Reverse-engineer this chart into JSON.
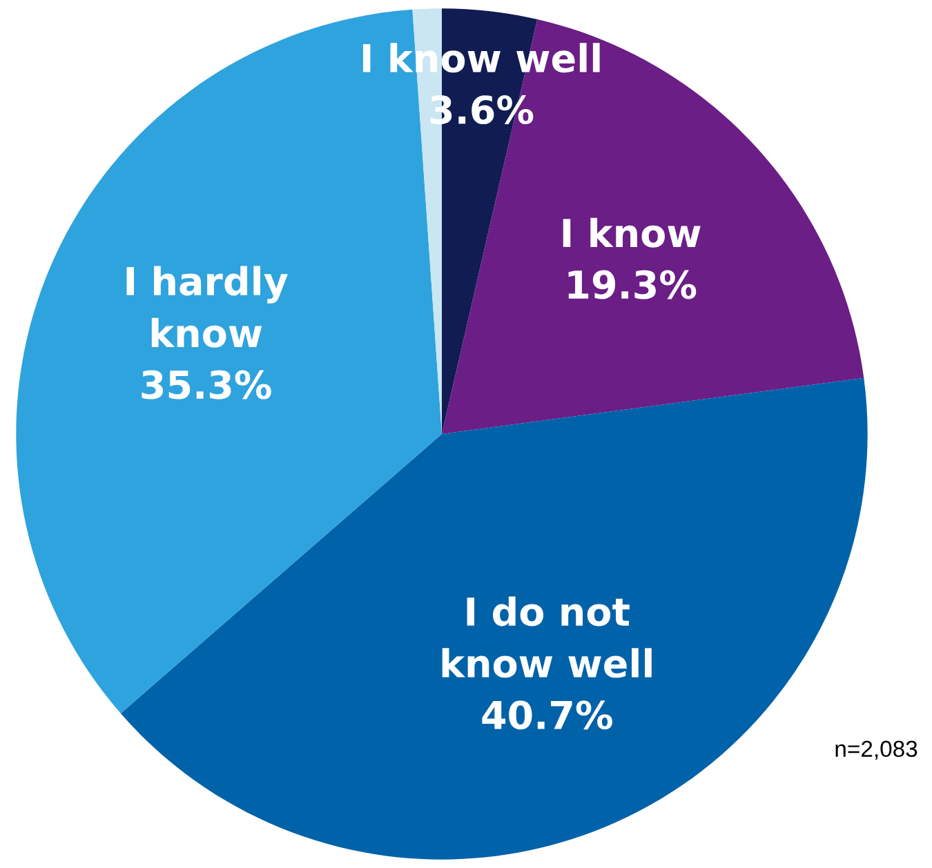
{
  "chart_data": {
    "type": "pie",
    "categories": [
      "I know well",
      "I know",
      "I do not\nknow well",
      "I hardly\nknow",
      null
    ],
    "values": [
      3.6,
      19.3,
      40.7,
      35.3,
      1.1
    ],
    "value_labels": [
      "3.6%",
      "19.3%",
      "40.7%",
      "35.3%",
      null
    ],
    "colors": [
      "#101c52",
      "#6a1e86",
      "#0062a9",
      "#2fa3dd",
      "#c9e6f2"
    ],
    "annotations": [
      "n=2,083"
    ]
  }
}
